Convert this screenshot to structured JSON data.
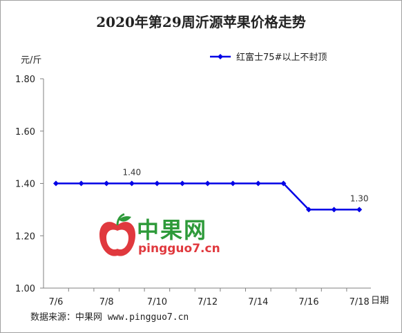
{
  "chart_data": {
    "type": "line",
    "title": "2020年第29周沂源苹果价格走势",
    "ylabel": "元/斤",
    "xlabel": "日期",
    "ylim": [
      1.0,
      1.8
    ],
    "yticks": [
      "1.00",
      "1.20",
      "1.40",
      "1.60",
      "1.80"
    ],
    "x": [
      "7/6",
      "7/7",
      "7/8",
      "7/9",
      "7/10",
      "7/11",
      "7/12",
      "7/13",
      "7/14",
      "7/15",
      "7/16",
      "7/17",
      "7/18"
    ],
    "xtick_labels": [
      "7/6",
      "7/8",
      "7/10",
      "7/12",
      "7/14",
      "7/16",
      "7/18"
    ],
    "series": [
      {
        "name": "红富士75#以上不封顶",
        "values": [
          1.4,
          1.4,
          1.4,
          1.4,
          1.4,
          1.4,
          1.4,
          1.4,
          1.4,
          1.4,
          1.3,
          1.3,
          1.3
        ],
        "color": "#0000e6"
      }
    ],
    "data_labels": [
      {
        "index": 3,
        "text": "1.40"
      },
      {
        "index": 12,
        "text": "1.30"
      }
    ],
    "legend_position": "top-right",
    "grid": false
  },
  "source_text": "数据来源：中果网 www.pingguo7.cn",
  "watermark": {
    "name": "中果网",
    "url": "pingguo7.cn"
  }
}
